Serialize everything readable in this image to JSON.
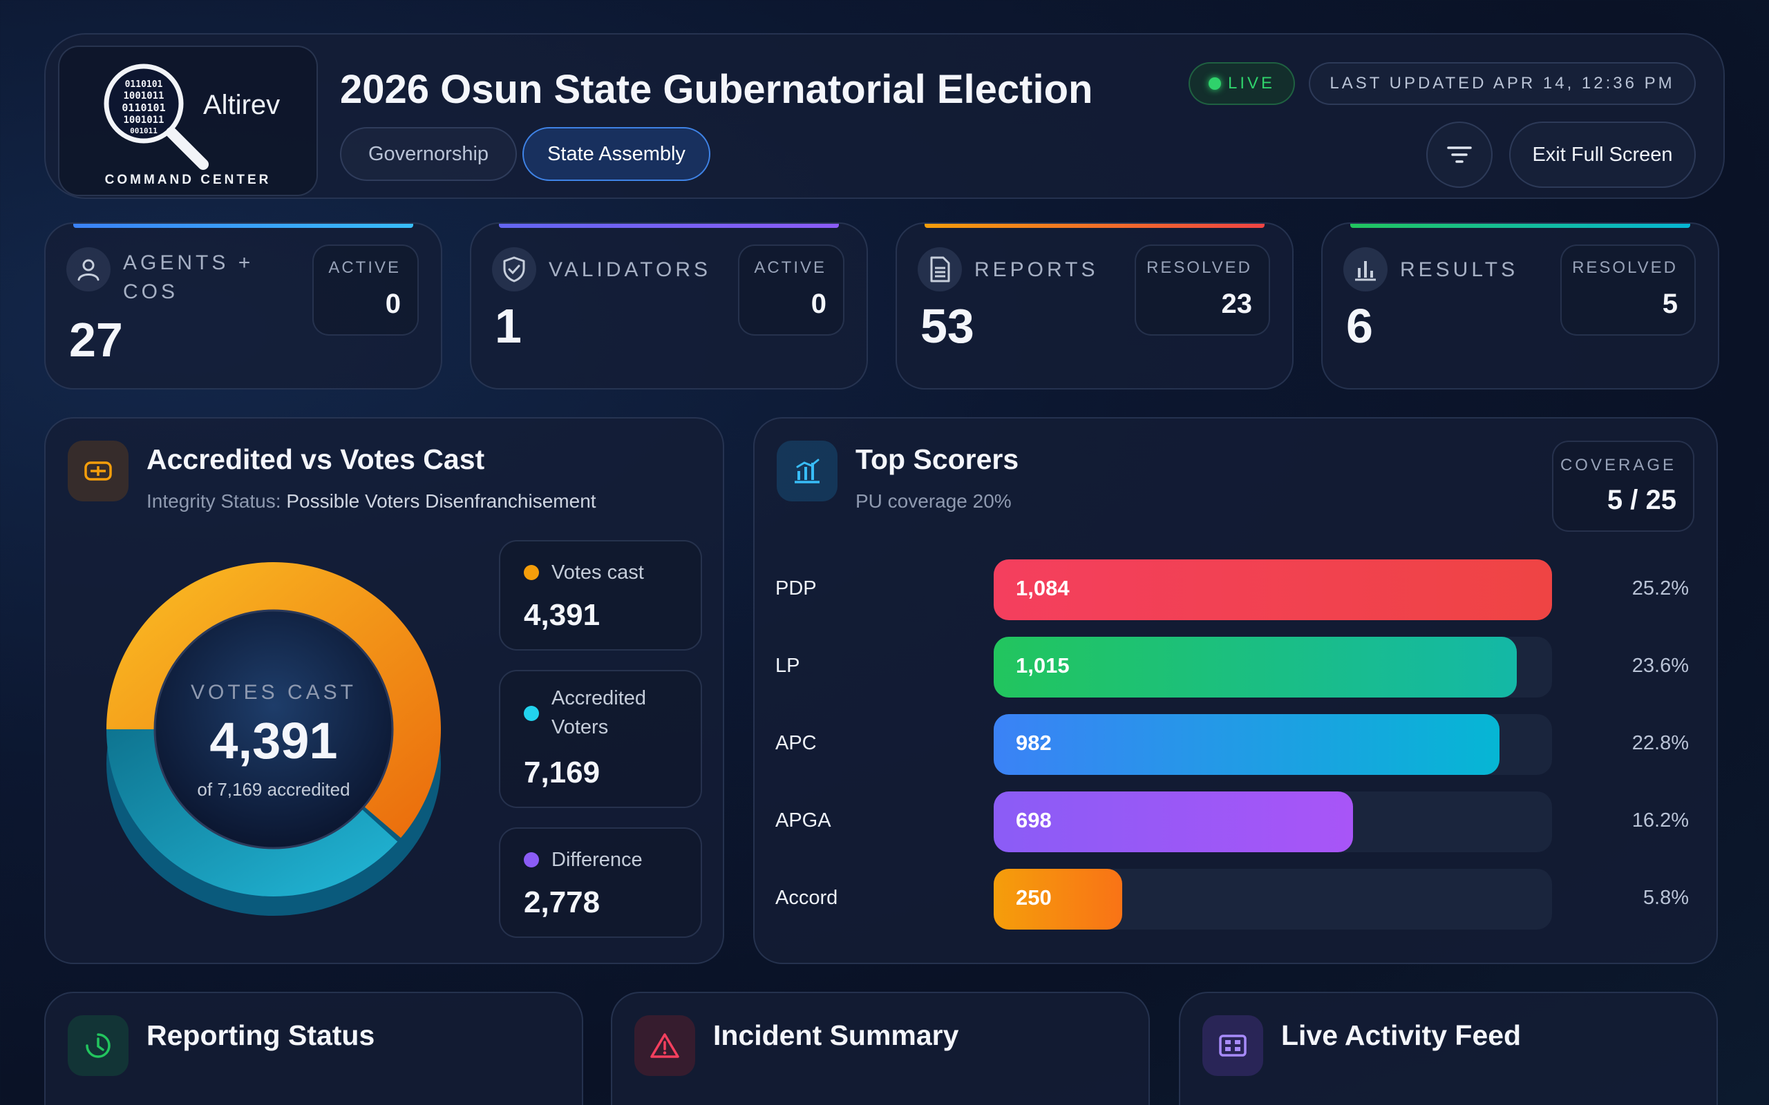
{
  "header": {
    "logo_word": "Altirev",
    "logo_sub": "COMMAND CENTER",
    "title": "2026 Osun State Gubernatorial Election",
    "tabs": [
      {
        "label": "Governorship",
        "active": false
      },
      {
        "label": "State Assembly",
        "active": true
      }
    ],
    "live_label": "LIVE",
    "last_updated": "LAST UPDATED APR 14, 12:36 PM",
    "exit_label": "Exit Full Screen"
  },
  "stats": [
    {
      "label": "AGENTS + COS",
      "value": "27",
      "sub_caption": "ACTIVE",
      "sub_value": "0",
      "icon": "user-icon",
      "accent": "#3b82f6"
    },
    {
      "label": "VALIDATORS",
      "value": "1",
      "sub_caption": "ACTIVE",
      "sub_value": "0",
      "icon": "shield-check-icon",
      "accent": "#8b5cf6"
    },
    {
      "label": "REPORTS",
      "value": "53",
      "sub_caption": "RESOLVED",
      "sub_value": "23",
      "icon": "document-icon",
      "accent": "#f97316"
    },
    {
      "label": "RESULTS",
      "value": "6",
      "sub_caption": "RESOLVED",
      "sub_value": "5",
      "icon": "bar-chart-icon",
      "accent": "#22c55e"
    }
  ],
  "accredited": {
    "title": "Accredited vs Votes Cast",
    "status_label": "Integrity Status:",
    "status_value": "Possible Voters Disenfranchisement",
    "center_caption": "VOTES CAST",
    "center_value": "4,391",
    "center_sub": "of 7,169 accredited",
    "legend": [
      {
        "label": "Votes cast",
        "value": "4,391",
        "color": "#f59e0b"
      },
      {
        "label": "Accredited Voters",
        "value": "7,169",
        "color": "#22d3ee"
      },
      {
        "label": "Difference",
        "value": "2,778",
        "color": "#8b5cf6"
      }
    ]
  },
  "top_scorers": {
    "title": "Top Scorers",
    "subtitle": "PU coverage 20%",
    "coverage_caption": "COVERAGE",
    "coverage_value": "5 / 25"
  },
  "chart_data": {
    "type": "bar",
    "orientation": "horizontal",
    "categories": [
      "PDP",
      "LP",
      "APC",
      "APGA",
      "Accord"
    ],
    "values": [
      1084,
      1015,
      982,
      698,
      250
    ],
    "value_labels": [
      "1,084",
      "1,015",
      "982",
      "698",
      "250"
    ],
    "percents": [
      "25.2%",
      "23.6%",
      "22.8%",
      "16.2%",
      "5.8%"
    ],
    "colors": [
      [
        "#f43f5e",
        "#ef4444"
      ],
      [
        "#22c55e",
        "#14b8a6"
      ],
      [
        "#3b82f6",
        "#06b6d4"
      ],
      [
        "#8b5cf6",
        "#a855f7"
      ],
      [
        "#f59e0b",
        "#f97316"
      ]
    ],
    "xlim": [
      0,
      1084
    ]
  },
  "bottom_panels": [
    {
      "title": "Reporting Status",
      "icon": "clock-icon"
    },
    {
      "title": "Incident Summary",
      "icon": "warning-icon"
    },
    {
      "title": "Live Activity Feed",
      "icon": "feed-icon"
    }
  ]
}
